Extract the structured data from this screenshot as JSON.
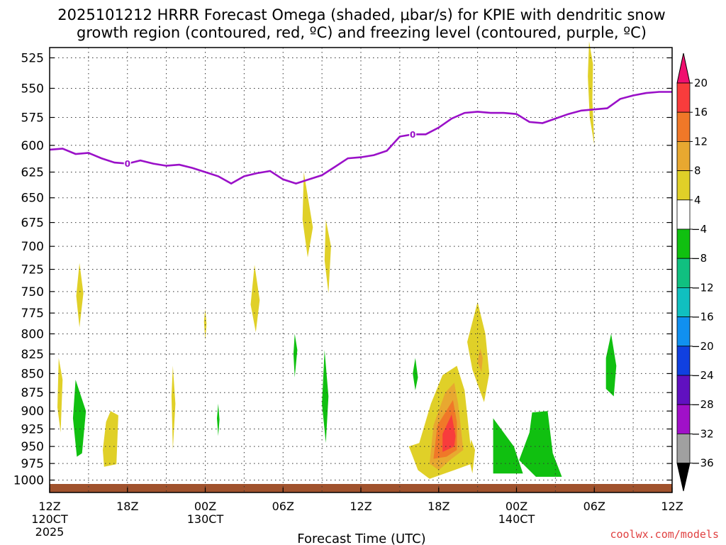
{
  "chart_data": {
    "type": "heatmap",
    "title_line1": "2025101212 HRRR Forecast Omega (shaded, μbar/s) for KPIE with dendritic snow",
    "title_line2": "growth region (contoured, red, ºC) and freezing level (contoured, purple, ºC)",
    "xlabel": "Forecast Time (UTC)",
    "x_ticks": [
      {
        "hour": 0,
        "label": "12Z",
        "sub": "120CT",
        "sub2": "2025"
      },
      {
        "hour": 6,
        "label": "18Z",
        "sub": "",
        "sub2": ""
      },
      {
        "hour": 12,
        "label": "00Z",
        "sub": "130CT",
        "sub2": ""
      },
      {
        "hour": 18,
        "label": "06Z",
        "sub": "",
        "sub2": ""
      },
      {
        "hour": 24,
        "label": "12Z",
        "sub": "",
        "sub2": ""
      },
      {
        "hour": 30,
        "label": "18Z",
        "sub": "",
        "sub2": ""
      },
      {
        "hour": 36,
        "label": "00Z",
        "sub": "140CT",
        "sub2": ""
      },
      {
        "hour": 42,
        "label": "06Z",
        "sub": "",
        "sub2": ""
      },
      {
        "hour": 48,
        "label": "12Z",
        "sub": "",
        "sub2": ""
      }
    ],
    "x_range_hours": [
      0,
      48
    ],
    "y_axis": "pressure (mb)",
    "y_ticks": [
      525,
      550,
      575,
      600,
      625,
      650,
      675,
      700,
      725,
      750,
      775,
      800,
      825,
      850,
      875,
      900,
      925,
      950,
      975,
      1000
    ],
    "colorbar": {
      "ticks": [
        20,
        16,
        12,
        8,
        4,
        -4,
        -8,
        -12,
        -16,
        -20,
        -24,
        -28,
        -32,
        -36
      ],
      "colors": [
        "#f0106f",
        "#f83c3c",
        "#f07828",
        "#e8a830",
        "#e0d028",
        "#ffffff",
        "#10c010",
        "#10c080",
        "#10c0c0",
        "#1090f0",
        "#1040e0",
        "#6010c0",
        "#a010c8",
        "#a0a0a0",
        "#000000"
      ]
    },
    "freezing_level": {
      "label": "0",
      "points": [
        [
          0,
          604
        ],
        [
          1,
          603
        ],
        [
          2,
          608
        ],
        [
          3,
          607
        ],
        [
          4,
          612
        ],
        [
          5,
          616
        ],
        [
          6,
          617
        ],
        [
          7,
          614
        ],
        [
          8,
          617
        ],
        [
          9,
          619
        ],
        [
          10,
          618
        ],
        [
          11,
          621
        ],
        [
          12,
          625
        ],
        [
          13,
          629
        ],
        [
          14,
          636
        ],
        [
          15,
          629
        ],
        [
          16,
          626
        ],
        [
          17,
          624
        ],
        [
          18,
          632
        ],
        [
          19,
          636
        ],
        [
          20,
          632
        ],
        [
          21,
          628
        ],
        [
          22,
          620
        ],
        [
          23,
          612
        ],
        [
          24,
          611
        ],
        [
          25,
          609
        ],
        [
          26,
          605
        ],
        [
          27,
          592
        ],
        [
          28,
          590
        ],
        [
          29,
          590
        ],
        [
          30,
          584
        ],
        [
          31,
          576
        ],
        [
          32,
          571
        ],
        [
          33,
          570
        ],
        [
          34,
          571
        ],
        [
          35,
          571
        ],
        [
          36,
          572
        ],
        [
          37,
          579
        ],
        [
          38,
          580
        ],
        [
          39,
          576
        ],
        [
          40,
          572
        ],
        [
          41,
          569
        ],
        [
          42,
          568
        ],
        [
          43,
          567
        ],
        [
          44,
          559
        ],
        [
          45,
          556
        ],
        [
          46,
          554
        ],
        [
          47,
          553
        ],
        [
          48,
          553
        ]
      ]
    },
    "omega_regions": [
      {
        "category": 4,
        "polygon": [
          [
            0.7,
            830
          ],
          [
            1.0,
            858
          ],
          [
            0.85,
            930
          ],
          [
            0.6,
            895
          ]
        ]
      },
      {
        "category": -4,
        "polygon": [
          [
            2.0,
            858
          ],
          [
            2.8,
            900
          ],
          [
            2.5,
            960
          ],
          [
            2.1,
            965
          ],
          [
            1.8,
            910
          ]
        ]
      },
      {
        "category": 4,
        "polygon": [
          [
            2.3,
            718
          ],
          [
            2.6,
            752
          ],
          [
            2.3,
            792
          ],
          [
            2.05,
            755
          ]
        ]
      },
      {
        "category": 4,
        "polygon": [
          [
            4.7,
            900
          ],
          [
            5.3,
            906
          ],
          [
            5.15,
            976
          ],
          [
            4.2,
            980
          ],
          [
            4.1,
            955
          ],
          [
            4.35,
            915
          ]
        ]
      },
      {
        "category": 4,
        "polygon": [
          [
            9.5,
            840
          ],
          [
            9.7,
            890
          ],
          [
            9.5,
            955
          ],
          [
            9.4,
            880
          ]
        ]
      },
      {
        "category": 4,
        "polygon": [
          [
            12.0,
            770
          ],
          [
            12.1,
            788
          ],
          [
            12.0,
            808
          ],
          [
            11.9,
            785
          ]
        ]
      },
      {
        "category": -4,
        "polygon": [
          [
            13.0,
            890
          ],
          [
            13.1,
            912
          ],
          [
            13.0,
            935
          ],
          [
            12.9,
            910
          ]
        ]
      },
      {
        "category": 4,
        "polygon": [
          [
            15.8,
            720
          ],
          [
            16.2,
            760
          ],
          [
            15.9,
            798
          ],
          [
            15.5,
            765
          ]
        ]
      },
      {
        "category": -4,
        "polygon": [
          [
            18.9,
            800
          ],
          [
            19.1,
            820
          ],
          [
            18.9,
            855
          ],
          [
            18.8,
            825
          ]
        ]
      },
      {
        "category": 4,
        "polygon": [
          [
            19.6,
            625
          ],
          [
            20.3,
            680
          ],
          [
            19.9,
            712
          ],
          [
            19.5,
            672
          ]
        ]
      },
      {
        "category": 4,
        "polygon": [
          [
            21.3,
            672
          ],
          [
            21.7,
            700
          ],
          [
            21.5,
            752
          ],
          [
            21.2,
            715
          ]
        ]
      },
      {
        "category": -4,
        "polygon": [
          [
            21.2,
            820
          ],
          [
            21.5,
            880
          ],
          [
            21.3,
            945
          ],
          [
            21.0,
            890
          ]
        ]
      },
      {
        "category": -4,
        "polygon": [
          [
            28.2,
            830
          ],
          [
            28.4,
            855
          ],
          [
            28.2,
            872
          ],
          [
            28.0,
            850
          ]
        ]
      },
      {
        "category": 4,
        "polygon": [
          [
            30.3,
            852
          ],
          [
            31.4,
            840
          ],
          [
            32.0,
            872
          ],
          [
            32.6,
            975
          ],
          [
            31.2,
            985
          ],
          [
            29.3,
            998
          ],
          [
            28.4,
            985
          ],
          [
            27.7,
            950
          ],
          [
            28.5,
            945
          ],
          [
            29.4,
            890
          ]
        ]
      },
      {
        "category": 8,
        "polygon": [
          [
            31.2,
            862
          ],
          [
            31.5,
            890
          ],
          [
            31.9,
            955
          ],
          [
            31.0,
            968
          ],
          [
            30.0,
            985
          ],
          [
            29.3,
            975
          ],
          [
            29.6,
            920
          ],
          [
            30.5,
            875
          ]
        ]
      },
      {
        "category": 12,
        "polygon": [
          [
            31.1,
            885
          ],
          [
            31.4,
            915
          ],
          [
            31.4,
            955
          ],
          [
            30.6,
            965
          ],
          [
            29.6,
            968
          ],
          [
            29.9,
            920
          ]
        ]
      },
      {
        "category": 16,
        "polygon": [
          [
            31.0,
            905
          ],
          [
            31.3,
            935
          ],
          [
            31.2,
            950
          ],
          [
            30.3,
            958
          ],
          [
            30.3,
            932
          ]
        ]
      },
      {
        "category": 20,
        "polygon": [
          [
            30.85,
            912
          ],
          [
            31.1,
            935
          ],
          [
            30.95,
            950
          ],
          [
            30.55,
            945
          ],
          [
            30.6,
            925
          ]
        ]
      },
      {
        "category": 4,
        "polygon": [
          [
            33.0,
            762
          ],
          [
            33.6,
            800
          ],
          [
            33.9,
            850
          ],
          [
            33.5,
            888
          ],
          [
            32.6,
            845
          ],
          [
            32.2,
            810
          ]
        ]
      },
      {
        "category": 4,
        "polygon": [
          [
            32.5,
            940
          ],
          [
            32.8,
            955
          ],
          [
            32.6,
            990
          ],
          [
            32.3,
            965
          ]
        ]
      },
      {
        "category": 8,
        "polygon": [
          [
            33.2,
            818
          ],
          [
            33.4,
            830
          ],
          [
            33.3,
            848
          ],
          [
            33.0,
            835
          ]
        ]
      },
      {
        "category": -4,
        "polygon": [
          [
            34.2,
            910
          ],
          [
            35.8,
            950
          ],
          [
            36.5,
            990
          ],
          [
            34.2,
            990
          ]
        ]
      },
      {
        "category": -4,
        "polygon": [
          [
            37.2,
            902
          ],
          [
            38.4,
            900
          ],
          [
            38.8,
            960
          ],
          [
            39.5,
            995
          ],
          [
            37.5,
            995
          ],
          [
            36.2,
            970
          ],
          [
            37.0,
            930
          ]
        ]
      },
      {
        "category": 4,
        "polygon": [
          [
            41.6,
            512
          ],
          [
            41.9,
            530
          ],
          [
            41.85,
            560
          ],
          [
            42.0,
            600
          ],
          [
            41.65,
            575
          ],
          [
            41.5,
            540
          ]
        ]
      },
      {
        "category": -4,
        "polygon": [
          [
            43.3,
            800
          ],
          [
            43.7,
            840
          ],
          [
            43.5,
            880
          ],
          [
            42.9,
            870
          ],
          [
            42.9,
            830
          ]
        ]
      }
    ]
  },
  "watermark": "coolwx.com/models"
}
